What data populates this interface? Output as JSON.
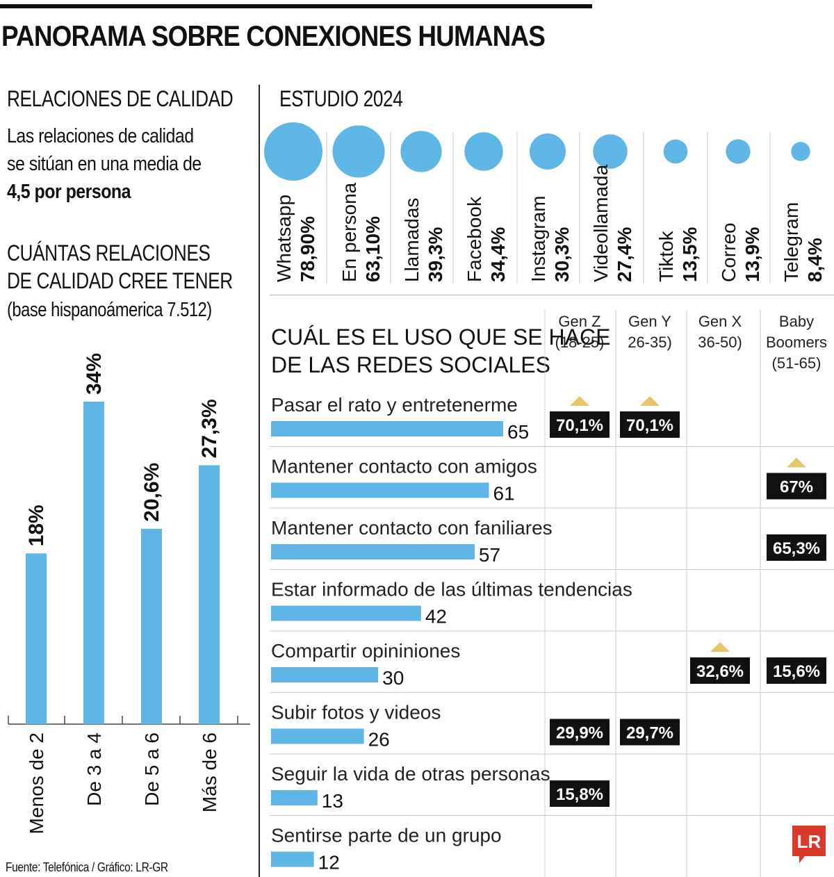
{
  "title": "PANORAMA SOBRE CONEXIONES HUMANAS",
  "left": {
    "heading": "RELACIONES DE CALIDAD",
    "text_line1": "Las relaciones de calidad",
    "text_line2": "se sitúan en una media de",
    "text_bold": "4,5 por persona",
    "chart_heading_line1": "CUÁNTAS RELACIONES",
    "chart_heading_line2": "DE CALIDAD CREE TENER",
    "base_note": "(base hispanoámerica 7.512)"
  },
  "footer": "Fuente: Telefónica / Gráfico: LR-GR",
  "logo_text": "LR",
  "colors": {
    "bar": "#5db6e6",
    "box": "#111111",
    "arrow": "#e8c46a",
    "grid": "#cccccc"
  },
  "chart_data": [
    {
      "type": "bar",
      "title": "CUÁNTAS RELACIONES DE CALIDAD CREE TENER",
      "categories": [
        "Menos de 2",
        "De 3 a 4",
        "De 5 a 6",
        "Más de 6"
      ],
      "values": [
        18,
        34,
        20.6,
        27.3
      ],
      "labels": [
        "18%",
        "34%",
        "20,6%",
        "27,3%"
      ],
      "ylim": [
        0,
        34
      ]
    },
    {
      "type": "bubble",
      "title": "ESTUDIO 2024",
      "categories": [
        "Whatsapp",
        "En persona",
        "Llamadas",
        "Facebook",
        "Instagram",
        "Videollamada",
        "Tiktok",
        "Correo",
        "Telegram"
      ],
      "values": [
        78.9,
        63.1,
        39.3,
        34.4,
        30.3,
        27.4,
        13.5,
        13.9,
        8.4
      ],
      "labels": [
        "78,90%",
        "63,10%",
        "39,3%",
        "34,4%",
        "30,3%",
        "27,4%",
        "13,5%",
        "13,9%",
        "8,4%"
      ]
    },
    {
      "type": "bar",
      "orientation": "horizontal",
      "title_line1": "CUÁL ES EL USO QUE SE HACE",
      "title_line2": "DE LAS REDES SOCIALES",
      "categories": [
        "Pasar el rato y entretenerme",
        "Mantener contacto con amigos",
        "Mantener contacto con faniliares",
        "Estar informado de las últimas tendencias",
        "Compartir opininiones",
        "Subir fotos y videos",
        "Seguir la vida de otras personas",
        "Sentirse parte de un grupo"
      ],
      "values": [
        65,
        61,
        57,
        42,
        30,
        26,
        13,
        12
      ],
      "xlim": [
        0,
        65
      ],
      "generations": [
        {
          "name_line1": "Gen Z",
          "name_line2": "(18-25)",
          "name_line3": ""
        },
        {
          "name_line1": "Gen Y",
          "name_line2": "26-35)",
          "name_line3": ""
        },
        {
          "name_line1": "Gen X",
          "name_line2": "36-50)",
          "name_line3": ""
        },
        {
          "name_line1": "Baby",
          "name_line2": "Boomers",
          "name_line3": "(51-65)"
        }
      ],
      "highlights": [
        {
          "row": 0,
          "gen": 0,
          "label": "70,1%",
          "arrow": true
        },
        {
          "row": 0,
          "gen": 1,
          "label": "70,1%",
          "arrow": true
        },
        {
          "row": 1,
          "gen": 3,
          "label": "67%",
          "arrow": true
        },
        {
          "row": 2,
          "gen": 3,
          "label": "65,3%",
          "arrow": false
        },
        {
          "row": 4,
          "gen": 2,
          "label": "32,6%",
          "arrow": true
        },
        {
          "row": 4,
          "gen": 3,
          "label": "15,6%",
          "arrow": false
        },
        {
          "row": 5,
          "gen": 0,
          "label": "29,9%",
          "arrow": false
        },
        {
          "row": 5,
          "gen": 1,
          "label": "29,7%",
          "arrow": false
        },
        {
          "row": 6,
          "gen": 0,
          "label": "15,8%",
          "arrow": false
        }
      ]
    }
  ]
}
